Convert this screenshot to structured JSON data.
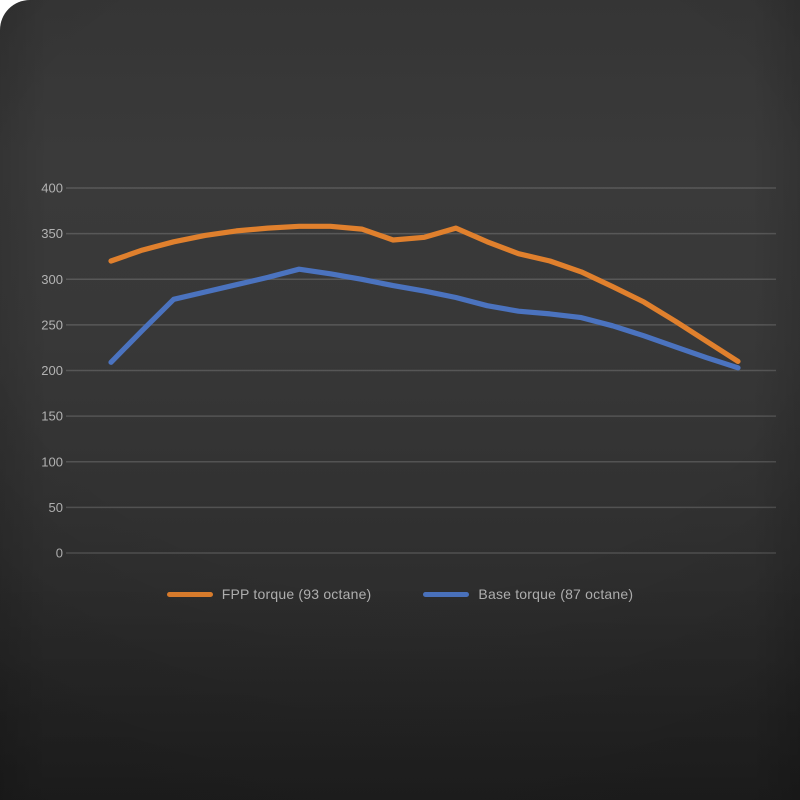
{
  "chart_data": {
    "type": "line",
    "title": "",
    "x_axis": {
      "labels_shown": false,
      "num_points": 21
    },
    "yticks": [
      400,
      350,
      300,
      250,
      200,
      150,
      100,
      50,
      0
    ],
    "ylim": [
      0,
      400
    ],
    "grid": true,
    "legend_position": "bottom",
    "series": [
      {
        "name": "FPP torque (93 octane)",
        "color": "#e0802d",
        "values": [
          320,
          332,
          341,
          348,
          353,
          356,
          358,
          358,
          355,
          343,
          346,
          356,
          341,
          328,
          320,
          308,
          292,
          275,
          254,
          232,
          210
        ]
      },
      {
        "name": "Base torque (87 octane)",
        "color": "#4b73bf",
        "values": [
          209,
          244,
          278,
          286,
          294,
          302,
          311,
          306,
          300,
          293,
          287,
          280,
          271,
          265,
          262,
          258,
          249,
          238,
          226,
          214,
          203
        ]
      }
    ],
    "colors": {
      "background": "#333333",
      "gridline": "rgba(255,255,255,0.16)",
      "tick_label": "#b3b3b3",
      "legend_text": "#b3b3b3"
    }
  }
}
